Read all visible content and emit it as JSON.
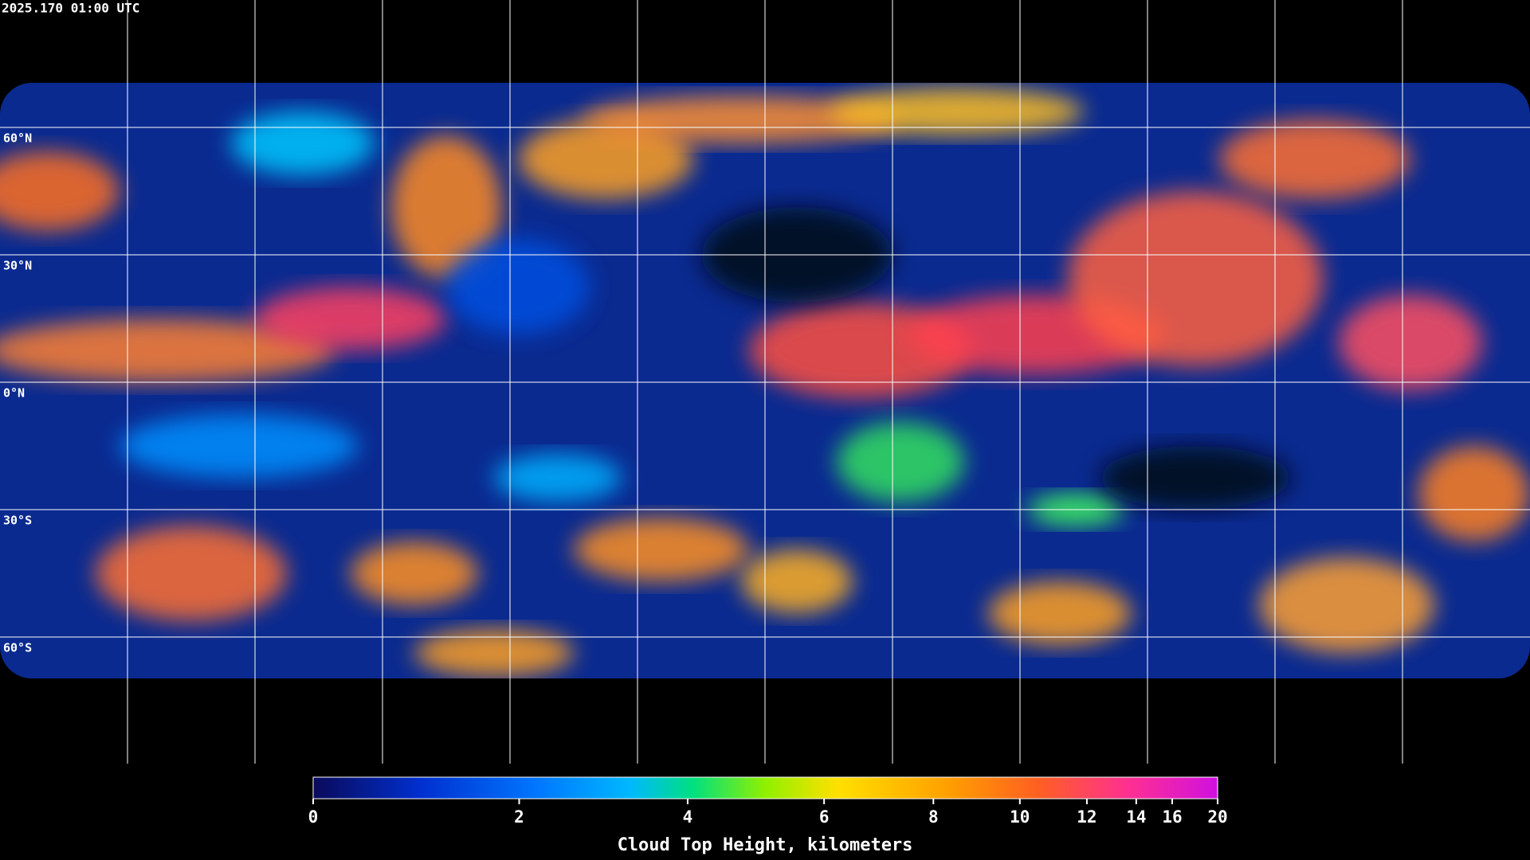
{
  "header": {
    "timestamp": "2025.170 01:00 UTC"
  },
  "map": {
    "latitude_labels": [
      "60°N",
      "30°N",
      "0°N",
      "30°S",
      "60°S"
    ]
  },
  "colorbar": {
    "label": "Cloud Top Height, kilometers",
    "range": [
      0,
      20
    ],
    "ticks": [
      0,
      2,
      4,
      6,
      8,
      10,
      12,
      14,
      16,
      20
    ]
  }
}
